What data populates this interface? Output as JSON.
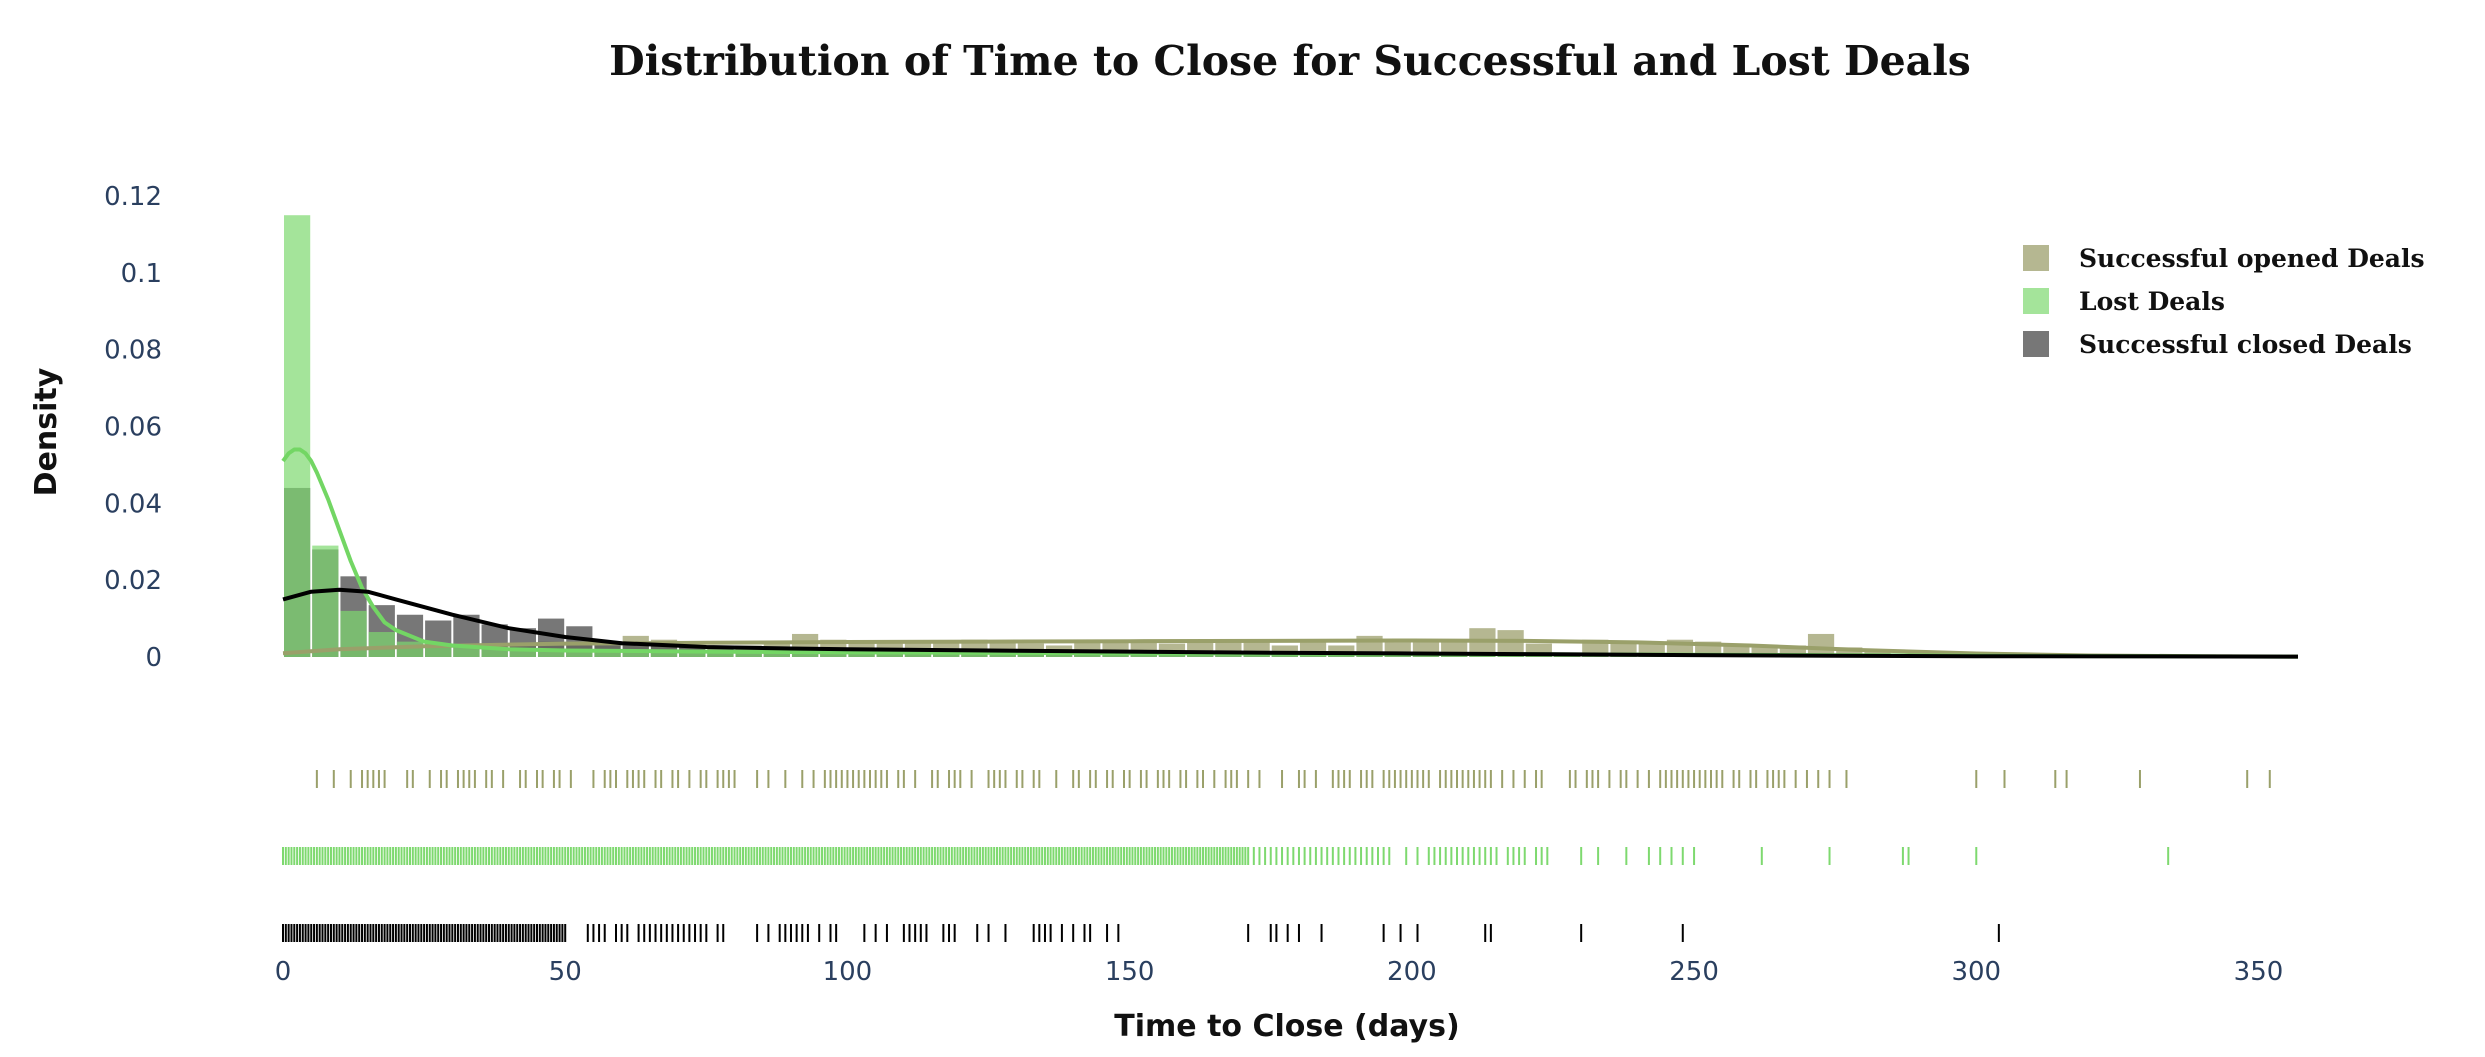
{
  "chart_data": {
    "type": "histogram",
    "title": "Distribution of Time to Close for Successful and Lost Deals",
    "xlabel": "Time to Close (days)",
    "ylabel": "Density",
    "xlim": [
      0,
      357
    ],
    "ylim": [
      0,
      0.12
    ],
    "x_ticks": [
      0,
      50,
      100,
      150,
      200,
      250,
      300,
      350
    ],
    "x_tick_labels": [
      "0",
      "50",
      "100",
      "150",
      "200",
      "250",
      "300",
      "350"
    ],
    "y_ticks": [
      0,
      0.02,
      0.04,
      0.06,
      0.08,
      0.1,
      0.12
    ],
    "y_tick_labels": [
      "0",
      "0.02",
      "0.04",
      "0.06",
      "0.08",
      "0.1",
      "0.12"
    ],
    "grid": false,
    "legend_position": "top-right",
    "bin_width": 5,
    "series": [
      {
        "name": "Successful opened Deals",
        "color": "#a3a575",
        "opacity": 0.8,
        "bin_start": 0,
        "density": [
          0.0008,
          0.0015,
          0.0025,
          0.0025,
          0.003,
          0.0025,
          0.003,
          0.0035,
          0.0035,
          0.004,
          0.0035,
          0.003,
          0.0055,
          0.0045,
          0.003,
          0.0025,
          0.003,
          0.004,
          0.006,
          0.0045,
          0.004,
          0.0035,
          0.004,
          0.004,
          0.0045,
          0.004,
          0.0035,
          0.003,
          0.004,
          0.0045,
          0.004,
          0.0035,
          0.004,
          0.004,
          0.0045,
          0.003,
          0.004,
          0.003,
          0.0055,
          0.004,
          0.004,
          0.0045,
          0.0075,
          0.007,
          0.0035,
          0.001,
          0.0045,
          0.004,
          0.004,
          0.0045,
          0.004,
          0.003,
          0.0025,
          0.003,
          0.006,
          0.0025,
          0.0015,
          0.0005,
          0.0005,
          0.0005,
          0.0005,
          0.0005,
          0.0005,
          0.0005,
          0.0005,
          0.0005,
          0.0005,
          0.0005,
          0.0005,
          0.0005,
          0.0005
        ],
        "kde_x": [
          0,
          10,
          25,
          50,
          75,
          100,
          125,
          150,
          175,
          200,
          220,
          240,
          260,
          280,
          300,
          320,
          340,
          357
        ],
        "kde_y": [
          0.001,
          0.002,
          0.0028,
          0.0035,
          0.0037,
          0.0039,
          0.004,
          0.0041,
          0.0042,
          0.0043,
          0.0042,
          0.0038,
          0.003,
          0.0018,
          0.0009,
          0.0004,
          0.0002,
          0.0001
        ],
        "rug": [
          6,
          9,
          12,
          14,
          15,
          16,
          17,
          18,
          22,
          23,
          26,
          28,
          29,
          31,
          32,
          33,
          34,
          36,
          37,
          39,
          42,
          43,
          45,
          46,
          48,
          49,
          51,
          55,
          57,
          58,
          59,
          61,
          62,
          63,
          64,
          66,
          67,
          69,
          70,
          72,
          74,
          75,
          77,
          78,
          79,
          80,
          84,
          86,
          89,
          92,
          94,
          96,
          97,
          98,
          99,
          100,
          101,
          102,
          103,
          104,
          105,
          106,
          107,
          109,
          110,
          112,
          115,
          116,
          118,
          119,
          120,
          122,
          125,
          126,
          127,
          128,
          130,
          131,
          133,
          134,
          137,
          140,
          141,
          143,
          144,
          146,
          147,
          149,
          150,
          152,
          153,
          155,
          156,
          157,
          159,
          160,
          162,
          163,
          165,
          167,
          168,
          169,
          171,
          173,
          177,
          180,
          181,
          183,
          186,
          187,
          188,
          189,
          191,
          192,
          193,
          195,
          196,
          197,
          198,
          199,
          200,
          201,
          202,
          203,
          205,
          206,
          207,
          208,
          209,
          210,
          211,
          212,
          213,
          214,
          216,
          218,
          220,
          222,
          223,
          228,
          229,
          231,
          232,
          233,
          235,
          237,
          238,
          240,
          242,
          244,
          245,
          246,
          247,
          248,
          249,
          250,
          251,
          252,
          253,
          254,
          255,
          257,
          258,
          260,
          261,
          263,
          264,
          265,
          266,
          268,
          270,
          272,
          274,
          277,
          300,
          305,
          314,
          316,
          329,
          348,
          352
        ]
      },
      {
        "name": "Lost Deals",
        "color": "#7ed96f",
        "opacity": 0.7,
        "bin_start": 0,
        "density": [
          0.115,
          0.029,
          0.012,
          0.0065,
          0.004,
          0.0035,
          0.003,
          0.0025,
          0.002,
          0.002,
          0.002,
          0.0015,
          0.0015,
          0.0015,
          0.0015,
          0.001,
          0.001,
          0.001,
          0.001,
          0.001,
          0.001,
          0.001,
          0.001,
          0.0008,
          0.0008,
          0.0008,
          0.0008,
          0.0008,
          0.0008,
          0.0008,
          0.0008,
          0.0008,
          0.0008,
          0.0008,
          0.0008,
          0.0008,
          0.0008,
          0.0008,
          0.0008,
          0.0008,
          0.0008,
          0.0008,
          0.0008,
          0.0008,
          0.0008,
          0.0008,
          0.0008,
          0.0008,
          0.0008,
          0.0008,
          0.0008,
          0.0005,
          0.0005,
          0.0005,
          0.0005,
          0.0005,
          0.0005,
          0.0005,
          0.0005,
          0.0005,
          0.0005,
          0.0005,
          0.0005,
          0.0005,
          0.0005,
          0.0005,
          0.0005,
          0.0005
        ],
        "kde_x": [
          0,
          1,
          2,
          3,
          4,
          5,
          6,
          8,
          10,
          12,
          14,
          16,
          18,
          20,
          25,
          30,
          40,
          50,
          75,
          100,
          150,
          200,
          250,
          300,
          357
        ],
        "kde_y": [
          0.051,
          0.053,
          0.054,
          0.054,
          0.053,
          0.051,
          0.048,
          0.041,
          0.033,
          0.025,
          0.018,
          0.013,
          0.009,
          0.007,
          0.004,
          0.003,
          0.002,
          0.0017,
          0.0014,
          0.0012,
          0.001,
          0.0008,
          0.0006,
          0.0003,
          0.0001
        ],
        "rug_dense_range": [
          0,
          171
        ],
        "rug": [
          172,
          173,
          174,
          175,
          176,
          177,
          178,
          179,
          180,
          181,
          182,
          183,
          184,
          185,
          186,
          187,
          188,
          189,
          190,
          191,
          192,
          193,
          194,
          195,
          196,
          199,
          201,
          203,
          204,
          205,
          206,
          207,
          208,
          209,
          210,
          211,
          212,
          213,
          214,
          215,
          217,
          218,
          219,
          220,
          222,
          223,
          224,
          230,
          233,
          238,
          242,
          244,
          246,
          248,
          250,
          262,
          274,
          287,
          288,
          300,
          334
        ]
      },
      {
        "name": "Successful closed Deals",
        "color": "#555555",
        "opacity": 0.8,
        "bin_start": 0,
        "density": [
          0.044,
          0.028,
          0.021,
          0.0135,
          0.011,
          0.0095,
          0.011,
          0.0085,
          0.0075,
          0.01,
          0.008,
          0.004,
          0.004,
          0.003,
          0.0025,
          0.002,
          0.0015,
          0.001,
          0.002,
          0.0015,
          0.0015,
          0.001,
          0.002,
          0.001,
          0.001,
          0.001,
          0.001,
          0.001,
          0.001,
          0.0005,
          0.001,
          0.001,
          0.0005,
          0.0005,
          0.0005,
          0.0005,
          0.0005,
          0.0005,
          0.0005,
          0.0005,
          0.0005,
          0.0005,
          0.0005,
          0.0005,
          0.0005,
          0.0005,
          0.0005,
          0.0005,
          0.0005,
          0.0005,
          0.0005,
          0.0005,
          0.0005,
          0.0005,
          0.0005,
          0.0005,
          0.0005,
          0.0005,
          0.0005,
          0.0005,
          0.0005
        ],
        "kde_x": [
          0,
          5,
          10,
          15,
          20,
          25,
          30,
          40,
          50,
          60,
          75,
          90,
          100,
          125,
          150,
          175,
          200,
          225,
          250,
          275,
          300,
          357
        ],
        "kde_y": [
          0.015,
          0.017,
          0.0175,
          0.017,
          0.015,
          0.013,
          0.011,
          0.0075,
          0.0052,
          0.0036,
          0.0026,
          0.0022,
          0.002,
          0.0017,
          0.0014,
          0.0011,
          0.0009,
          0.0007,
          0.0005,
          0.0003,
          0.0002,
          0.0001
        ],
        "rug_dense_range": [
          0,
          50
        ],
        "rug": [
          54,
          55,
          56,
          57,
          59,
          60,
          61,
          63,
          64,
          65,
          66,
          67,
          68,
          69,
          70,
          71,
          72,
          73,
          74,
          75,
          77,
          78,
          84,
          86,
          88,
          89,
          90,
          91,
          92,
          93,
          95,
          97,
          98,
          103,
          105,
          107,
          110,
          111,
          112,
          113,
          114,
          117,
          118,
          119,
          123,
          125,
          128,
          133,
          134,
          135,
          136,
          138,
          140,
          142,
          143,
          146,
          148,
          171,
          175,
          176,
          178,
          180,
          184,
          195,
          198,
          201,
          213,
          214,
          230,
          248,
          304
        ]
      }
    ]
  }
}
